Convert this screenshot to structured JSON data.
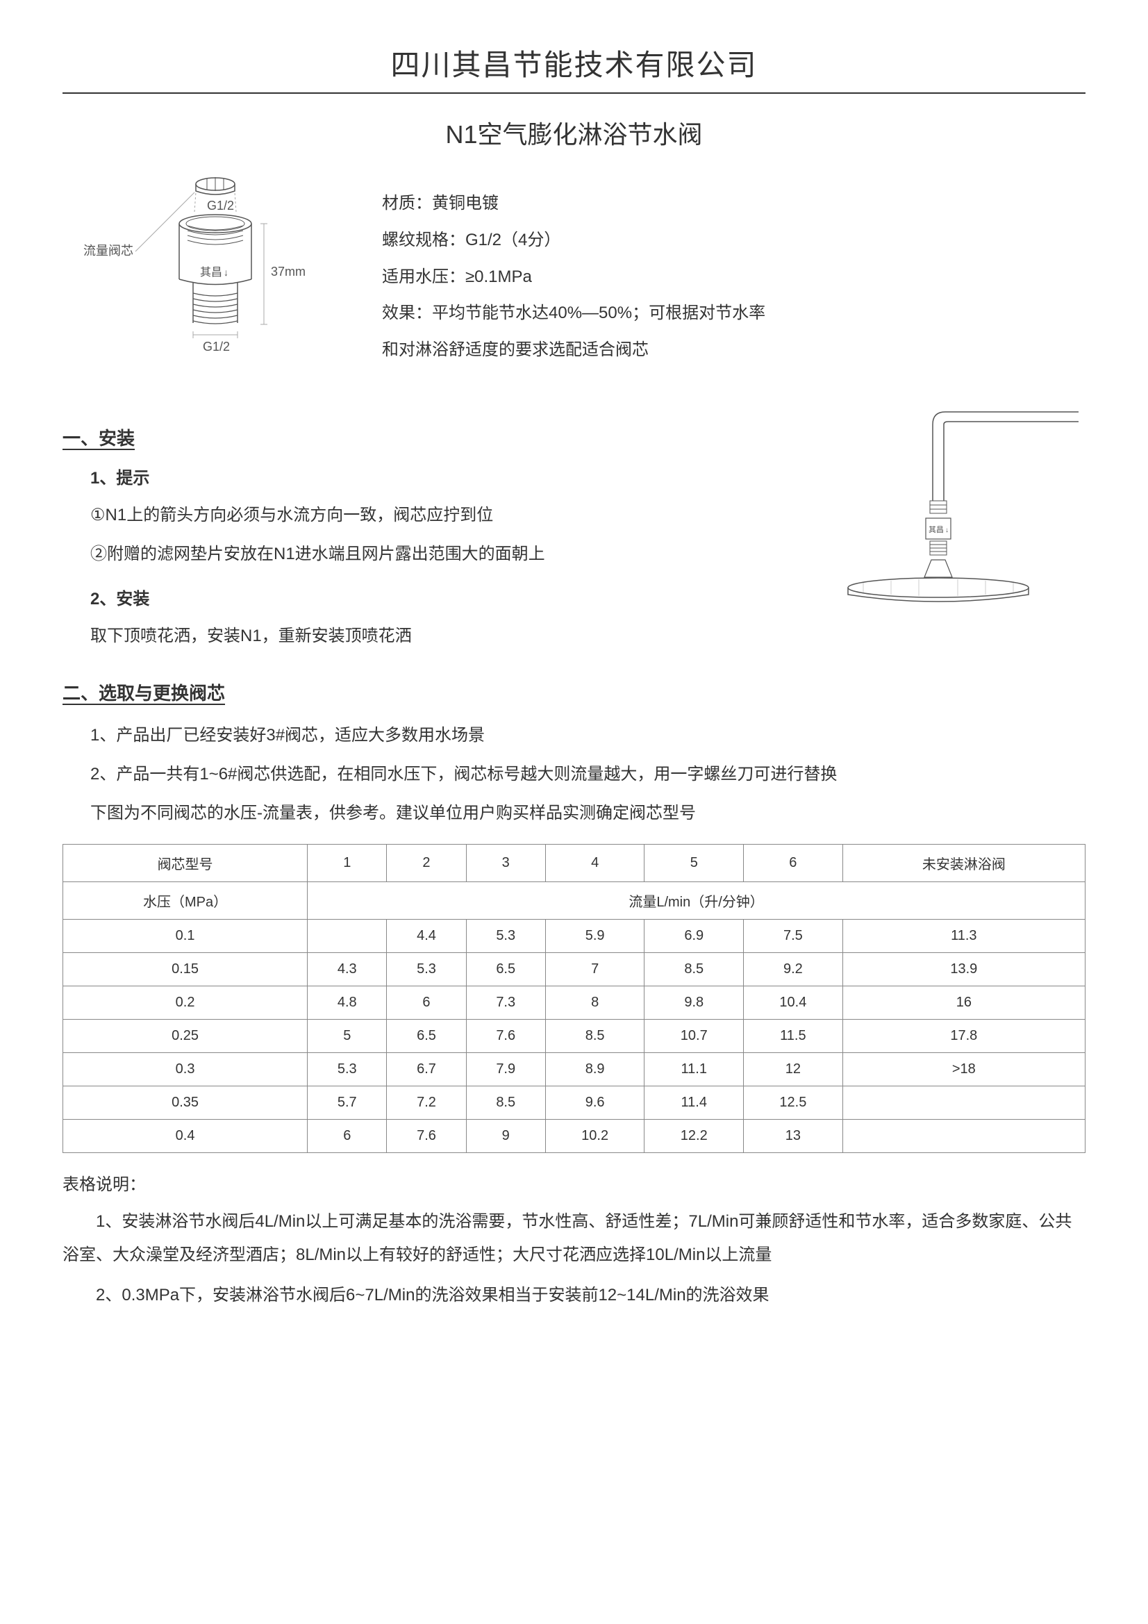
{
  "company_name": "四川其昌节能技术有限公司",
  "product_title": "N1空气膨化淋浴节水阀",
  "diagram": {
    "label_valve_core": "流量阀芯",
    "label_top_thread": "G1/2",
    "label_bottom_thread": "G1/2",
    "label_height": "37mm",
    "label_brand": "其昌"
  },
  "specs": {
    "material": "材质：黄铜电镀",
    "thread": "螺纹规格：G1/2（4分）",
    "pressure": "适用水压：≥0.1MPa",
    "effect1": "效果：平均节能节水达40%—50%；可根据对节水率",
    "effect2": "和对淋浴舒适度的要求选配适合阀芯"
  },
  "section1": {
    "heading": "一、安装",
    "sub1": "1、提示",
    "tip1": "①N1上的箭头方向必须与水流方向一致，阀芯应拧到位",
    "tip2": "②附赠的滤网垫片安放在N1进水端且网片露出范围大的面朝上",
    "sub2": "2、安装",
    "install_text": "取下顶喷花洒，安装N1，重新安装顶喷花洒"
  },
  "install_diagram": {
    "label": "其昌"
  },
  "section2": {
    "heading": "二、选取与更换阀芯",
    "line1": "1、产品出厂已经安装好3#阀芯，适应大多数用水场景",
    "line2": "2、产品一共有1~6#阀芯供选配，在相同水压下，阀芯标号越大则流量越大，用一字螺丝刀可进行替换",
    "line3": "下图为不同阀芯的水压-流量表，供参考。建议单位用户购买样品实测确定阀芯型号"
  },
  "table": {
    "header_model": "阀芯型号",
    "header_pressure": "水压（MPa）",
    "header_flow": "流量L/min（升/分钟）",
    "header_no_valve": "未安装淋浴阀",
    "models": [
      "1",
      "2",
      "3",
      "4",
      "5",
      "6"
    ],
    "rows": [
      {
        "p": "0.1",
        "v": [
          "",
          "4.4",
          "5.3",
          "5.9",
          "6.9",
          "7.5",
          "11.3"
        ]
      },
      {
        "p": "0.15",
        "v": [
          "4.3",
          "5.3",
          "6.5",
          "7",
          "8.5",
          "9.2",
          "13.9"
        ]
      },
      {
        "p": "0.2",
        "v": [
          "4.8",
          "6",
          "7.3",
          "8",
          "9.8",
          "10.4",
          "16"
        ]
      },
      {
        "p": "0.25",
        "v": [
          "5",
          "6.5",
          "7.6",
          "8.5",
          "10.7",
          "11.5",
          "17.8"
        ]
      },
      {
        "p": "0.3",
        "v": [
          "5.3",
          "6.7",
          "7.9",
          "8.9",
          "11.1",
          "12",
          ">18"
        ]
      },
      {
        "p": "0.35",
        "v": [
          "5.7",
          "7.2",
          "8.5",
          "9.6",
          "11.4",
          "12.5",
          ""
        ]
      },
      {
        "p": "0.4",
        "v": [
          "6",
          "7.6",
          "9",
          "10.2",
          "12.2",
          "13",
          ""
        ]
      }
    ]
  },
  "table_notes": {
    "heading": "表格说明：",
    "note1": "1、安装淋浴节水阀后4L/Min以上可满足基本的洗浴需要，节水性高、舒适性差；7L/Min可兼顾舒适性和节水率，适合多数家庭、公共浴室、大众澡堂及经济型酒店；8L/Min以上有较好的舒适性；大尺寸花洒应选择10L/Min以上流量",
    "note2": "2、0.3MPa下，安装淋浴节水阀后6~7L/Min的洗浴效果相当于安装前12~14L/Min的洗浴效果"
  },
  "colors": {
    "text": "#333333",
    "border": "#888888",
    "diagram_stroke": "#555555",
    "bg": "#ffffff"
  }
}
